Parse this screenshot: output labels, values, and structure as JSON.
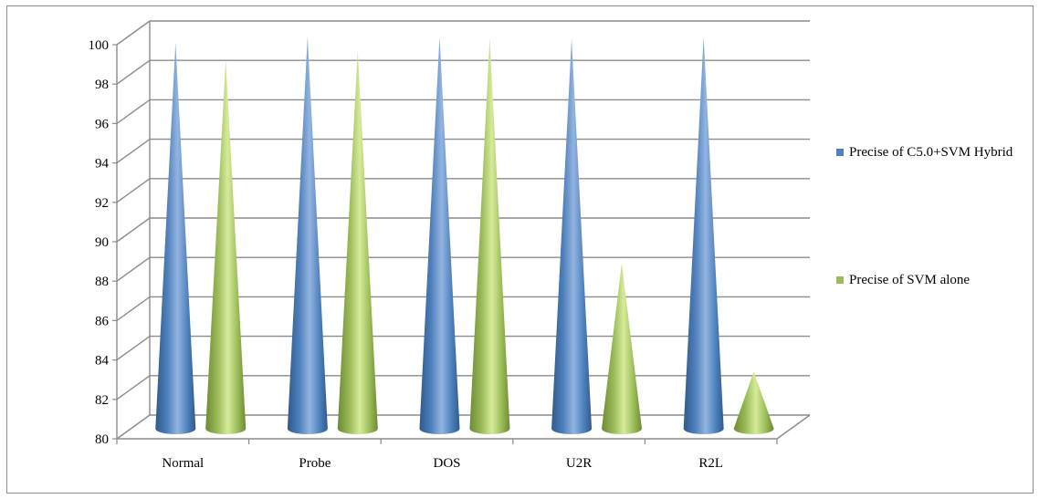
{
  "chart_data": {
    "type": "bar",
    "bar_shape": "cone",
    "categories": [
      "Normal",
      "Probe",
      "DOS",
      "U2R",
      "R2L"
    ],
    "series": [
      {
        "name": "Precise of C5.0+SVM Hybrid",
        "values": [
          99.6,
          99.9,
          99.9,
          99.8,
          99.9
        ],
        "color": "#4f81bd"
      },
      {
        "name": "Precise of SVM alone",
        "values": [
          98.7,
          99.2,
          99.8,
          88.4,
          82.9
        ],
        "color": "#9bbb59"
      }
    ],
    "y_ticks": [
      "80",
      "82",
      "84",
      "86",
      "88",
      "90",
      "92",
      "94",
      "96",
      "98",
      "100"
    ],
    "ylim": [
      80,
      100
    ],
    "grid": true,
    "legend_position": "right"
  }
}
